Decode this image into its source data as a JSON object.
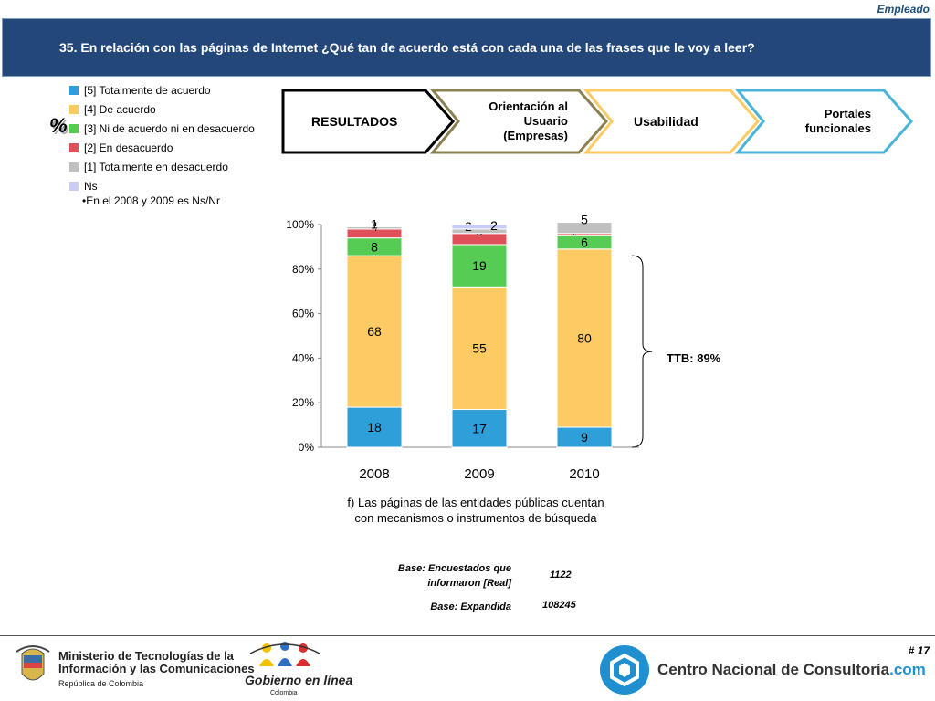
{
  "header": {
    "tag": "Empleado",
    "question": "35. En relación con las páginas de Internet ¿Qué tan de acuerdo está con cada una de las frases que le voy a leer?"
  },
  "legend": {
    "items": [
      {
        "label": "[5] Totalmente de acuerdo",
        "color": "#2e9fd8"
      },
      {
        "label": "[4] De acuerdo",
        "color": "#fdca63"
      },
      {
        "label": "[3] Ni de acuerdo ni en desacuerdo",
        "color": "#57cc54"
      },
      {
        "label": "[2] En desacuerdo",
        "color": "#e0505a"
      },
      {
        "label": "[1] Totalmente en desacuerdo",
        "color": "#c0c0c0"
      },
      {
        "label": "Ns",
        "color": "#c9cdf5"
      }
    ],
    "percent_symbol": "%",
    "note": "•En el 2008 y 2009 es Ns/Nr"
  },
  "steps": [
    {
      "label": "RESULTADOS",
      "border": "#000000"
    },
    {
      "label": "Orientación al Usuario (Empresas)",
      "border": "#8a8152"
    },
    {
      "label": "Usabilidad",
      "border": "#fdca63"
    },
    {
      "label": "Portales funcionales",
      "border": "#4ab4d8"
    }
  ],
  "chart_data": {
    "type": "bar",
    "stacked": true,
    "categories": [
      "2008",
      "2009",
      "2010"
    ],
    "y_ticks": [
      "0%",
      "20%",
      "40%",
      "60%",
      "80%",
      "100%"
    ],
    "ylim": [
      0,
      100
    ],
    "series": [
      {
        "name": "[5] Totalmente de acuerdo",
        "color": "#2e9fd8",
        "values": [
          18,
          17,
          9
        ]
      },
      {
        "name": "[4] De acuerdo",
        "color": "#fdca63",
        "values": [
          68,
          55,
          80
        ]
      },
      {
        "name": "[3] Ni de acuerdo ni en desacuerdo",
        "color": "#57cc54",
        "values": [
          8,
          19,
          6
        ]
      },
      {
        "name": "[2] En desacuerdo",
        "color": "#e0505a",
        "values": [
          4,
          5,
          1
        ]
      },
      {
        "name": "[1] Totalmente en desacuerdo",
        "color": "#c0c0c0",
        "values": [
          1,
          2,
          5
        ]
      },
      {
        "name": "Ns",
        "color": "#c9cdf5",
        "values": [
          0,
          2,
          0
        ]
      }
    ],
    "annotation": "TTB: 89%",
    "caption": "f) Las páginas de las entidades públicas cuentan con mecanismos o instrumentos de búsqueda"
  },
  "base": {
    "real_label": "Base: Encuestados que informaron [Real]",
    "real_value": "1122",
    "expanded_label": "Base: Expandida",
    "expanded_value": "108245"
  },
  "footer": {
    "page": "# 17",
    "mintic_line1": "Ministerio de Tecnologías de la",
    "mintic_line2": "Información y las Comunicaciones",
    "mintic_line3": "República de Colombia",
    "gob_name": "Gobierno en línea",
    "gob_sub": "Colombia",
    "cnc_name": "Centro Nacional de Consultoría",
    "cnc_domain": ".com"
  }
}
